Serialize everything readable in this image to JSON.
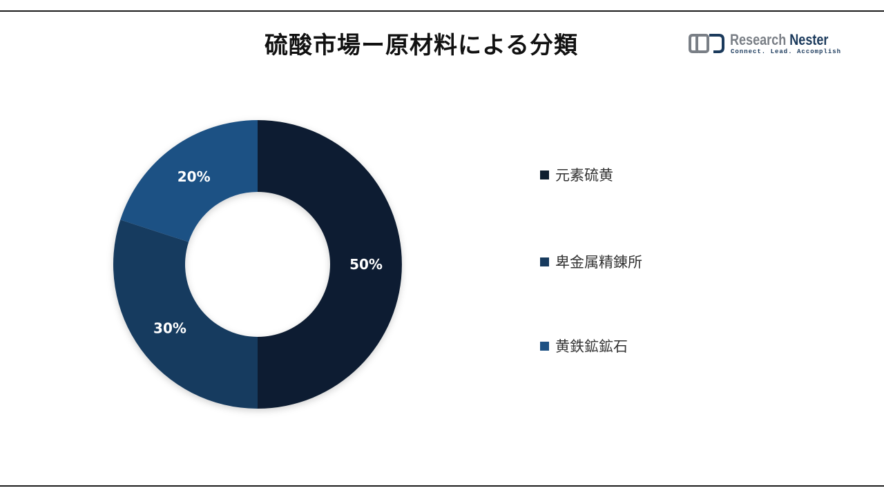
{
  "header": {
    "title": "硫酸市場ー原材料による分類"
  },
  "logo": {
    "name_part1": "Research",
    "name_part2": "Nester",
    "tagline": "Connect. Lead. Accomplish",
    "mark_color": "#7a7f86",
    "accent_color": "#1b3a5c"
  },
  "chart_data": {
    "type": "pie",
    "variant": "donut",
    "title": "硫酸市場ー原材料による分類",
    "categories": [
      "元素硫黄",
      "卑金属精錬所",
      "黄鉄鉱鉱石"
    ],
    "values": [
      50,
      30,
      20
    ],
    "labels": [
      "50%",
      "30%",
      "20%"
    ],
    "colors": [
      "#0e1f30",
      "#173a5e",
      "#1e5184"
    ],
    "start_angle": "top",
    "direction": "clockwise",
    "legend_position": "right"
  }
}
